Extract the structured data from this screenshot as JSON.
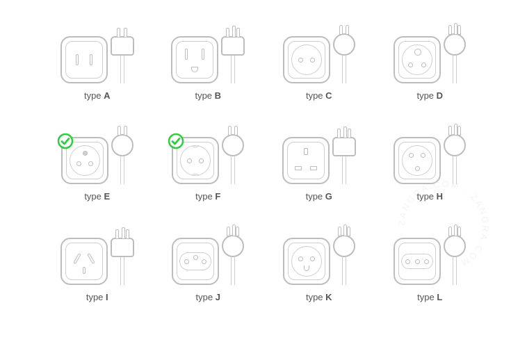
{
  "label_prefix": "type",
  "stroke_color": "#bdbdbd",
  "stroke_light": "#cfcfcf",
  "text_color": "#555555",
  "check_color": "#2ecc40",
  "background": "#ffffff",
  "label_fontsize": 13,
  "watermark_text": "ZANGRA.COM · ZANGRA.COM · ",
  "watermark_color": "#dddddd",
  "plugs": [
    {
      "letter": "A",
      "checked": false,
      "socket_shape": "rect",
      "holes": "two-vslots",
      "plug_shape": "rect",
      "prongs": 2,
      "prong_style": "flat"
    },
    {
      "letter": "B",
      "checked": false,
      "socket_shape": "rect",
      "holes": "two-vslots-ground",
      "plug_shape": "rect",
      "prongs": 3,
      "prong_style": "flat"
    },
    {
      "letter": "C",
      "checked": false,
      "socket_shape": "circle",
      "holes": "two-dots",
      "plug_shape": "round",
      "prongs": 2,
      "prong_style": "round"
    },
    {
      "letter": "D",
      "checked": false,
      "socket_shape": "circle",
      "holes": "three-dots-tri",
      "plug_shape": "round",
      "prongs": 3,
      "prong_style": "round"
    },
    {
      "letter": "E",
      "checked": true,
      "socket_shape": "circle",
      "holes": "two-dots-pin",
      "plug_shape": "round",
      "prongs": 2,
      "prong_style": "round"
    },
    {
      "letter": "F",
      "checked": true,
      "socket_shape": "circle",
      "holes": "two-dots-clips",
      "plug_shape": "round",
      "prongs": 2,
      "prong_style": "round"
    },
    {
      "letter": "G",
      "checked": false,
      "socket_shape": "rect",
      "holes": "three-rect-uk",
      "plug_shape": "rect",
      "prongs": 3,
      "prong_style": "flat"
    },
    {
      "letter": "H",
      "checked": false,
      "socket_shape": "circle",
      "holes": "three-dots-y",
      "plug_shape": "round",
      "prongs": 3,
      "prong_style": "round"
    },
    {
      "letter": "I",
      "checked": false,
      "socket_shape": "rect",
      "holes": "three-angled",
      "plug_shape": "rect",
      "prongs": 3,
      "prong_style": "flat"
    },
    {
      "letter": "J",
      "checked": false,
      "socket_shape": "rect",
      "holes": "three-dots-offset",
      "plug_shape": "round",
      "prongs": 3,
      "prong_style": "round"
    },
    {
      "letter": "K",
      "checked": false,
      "socket_shape": "circle",
      "holes": "two-dots-u",
      "plug_shape": "round",
      "prongs": 3,
      "prong_style": "round"
    },
    {
      "letter": "L",
      "checked": false,
      "socket_shape": "rect",
      "holes": "three-dots-line",
      "plug_shape": "round",
      "prongs": 3,
      "prong_style": "round"
    }
  ]
}
